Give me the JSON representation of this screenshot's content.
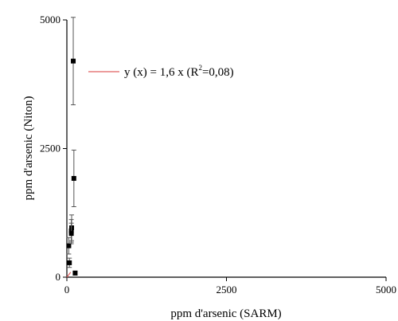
{
  "chart_data": {
    "type": "scatter",
    "title": "",
    "xlabel": "ppm d'arsenic (SARM)",
    "ylabel": "ppm d'arsenic (Niton)",
    "xlim": [
      0,
      5000
    ],
    "ylim": [
      0,
      5000
    ],
    "x_ticks": [
      "0",
      "2500",
      "5000"
    ],
    "y_ticks": [
      "0",
      "2500",
      "5000"
    ],
    "legend_placement": "top-left",
    "grid": false,
    "fit_color": "#e06060",
    "fit_label": {
      "prefix": "y (x) = 1,6 x (R",
      "superscript": "2",
      "suffix": "=0,08)"
    },
    "fit": {
      "slope": 1.6,
      "r2": 0.08
    },
    "points": [
      {
        "x": 100,
        "y": 4200,
        "err": 850
      },
      {
        "x": 110,
        "y": 1920,
        "err": 550
      },
      {
        "x": 75,
        "y": 960,
        "err": 250
      },
      {
        "x": 70,
        "y": 900,
        "err": 220
      },
      {
        "x": 70,
        "y": 850,
        "err": 200
      },
      {
        "x": 30,
        "y": 610,
        "err": 160
      },
      {
        "x": 40,
        "y": 280,
        "err": 90
      },
      {
        "x": 130,
        "y": 80,
        "err": 40
      }
    ]
  }
}
